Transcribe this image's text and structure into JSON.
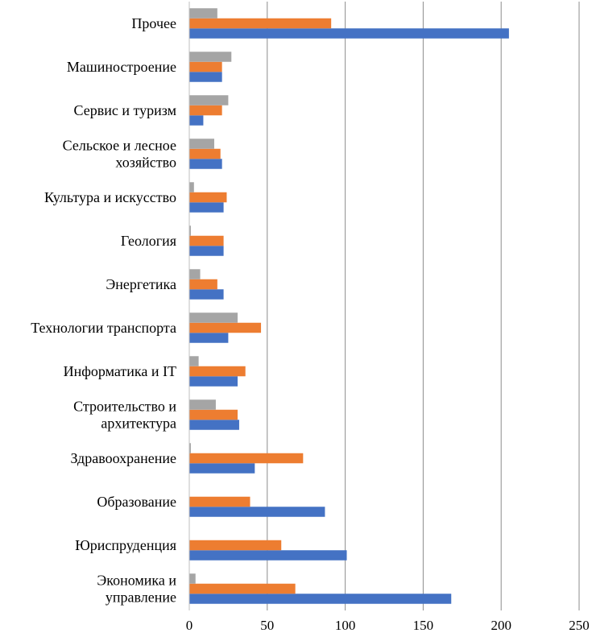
{
  "chart_data": {
    "type": "bar",
    "orientation": "horizontal",
    "categories": [
      [
        "Экономика и",
        "управление"
      ],
      [
        "Юриспруденция"
      ],
      [
        "Образование"
      ],
      [
        "Здравоохранение"
      ],
      [
        "Строительство и",
        "архитектура"
      ],
      [
        "Информатика и IT"
      ],
      [
        "Технологии транспорта"
      ],
      [
        "Энергетика"
      ],
      [
        "Геология"
      ],
      [
        "Культура и искусство"
      ],
      [
        "Сельское и лесное",
        "хозяйство"
      ],
      [
        "Сервис и туризм"
      ],
      [
        "Машиностроение"
      ],
      [
        "Прочее"
      ]
    ],
    "series": [
      {
        "color": "#4472C4",
        "values": [
          168,
          101,
          87,
          42,
          32,
          31,
          25,
          22,
          22,
          22,
          21,
          9,
          21,
          205
        ]
      },
      {
        "color": "#ED7D31",
        "values": [
          68,
          59,
          39,
          73,
          31,
          36,
          46,
          18,
          22,
          24,
          20,
          21,
          21,
          91
        ]
      },
      {
        "color": "#A5A5A5",
        "values": [
          4,
          0,
          0,
          1,
          17,
          6,
          31,
          7,
          1,
          3,
          16,
          25,
          27,
          18
        ]
      }
    ],
    "xlim": [
      0,
      250
    ],
    "xticks": [
      0,
      50,
      100,
      150,
      200,
      250
    ],
    "grid": true,
    "legend": "none"
  }
}
